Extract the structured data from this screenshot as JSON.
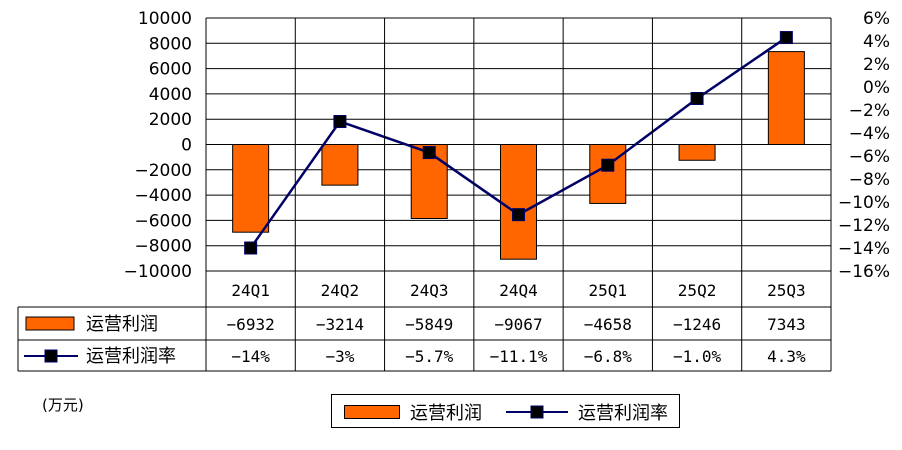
{
  "unit_label": "(万元)",
  "chart_data": {
    "type": "bar",
    "categories": [
      "24Q1",
      "24Q2",
      "24Q3",
      "24Q4",
      "25Q1",
      "25Q2",
      "25Q3"
    ],
    "series": [
      {
        "name": "运营利润",
        "type": "bar",
        "axis": "left",
        "color": "#FF6600",
        "values": [
          -6932,
          -3214,
          -5849,
          -9067,
          -4658,
          -1246,
          7343
        ],
        "labels": [
          "-6932",
          "-3214",
          "-5849",
          "-9067",
          "-4658",
          "-1246",
          "7343"
        ]
      },
      {
        "name": "运营利润率",
        "type": "line",
        "axis": "right",
        "color": "#000066",
        "values": [
          -14,
          -3,
          -5.7,
          -11.1,
          -6.8,
          -1.0,
          4.3
        ],
        "labels": [
          "-14%",
          "-3%",
          "-5.7%",
          "-11.1%",
          "-6.8%",
          "-1.0%",
          "4.3%"
        ]
      }
    ],
    "y_left": {
      "ylim": [
        -10000,
        10000
      ],
      "ticks": [
        "10000",
        "8000",
        "6000",
        "4000",
        "2000",
        "0",
        "-2000",
        "-4000",
        "-6000",
        "-8000",
        "-10000"
      ]
    },
    "y_right": {
      "ylim": [
        -16,
        6
      ],
      "ticks": [
        "6%",
        "4%",
        "2%",
        "0%",
        "-2%",
        "-4%",
        "-6%",
        "-8%",
        "-10%",
        "-12%",
        "-14%",
        "-16%"
      ]
    },
    "grid": true,
    "legend": "bottom-center",
    "data_table": true
  }
}
